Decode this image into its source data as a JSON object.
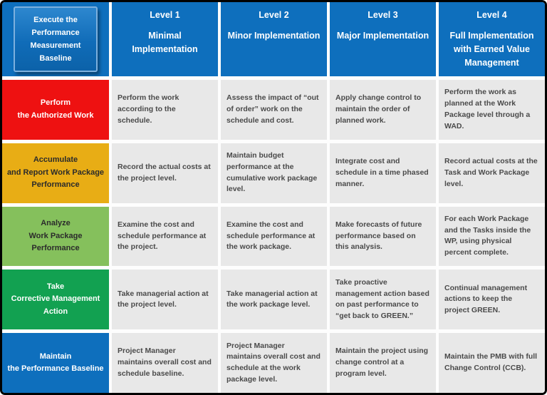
{
  "corner": {
    "text": "Execute the\nPerformance\nMeasurement\nBaseline"
  },
  "columns": [
    {
      "level": "Level 1",
      "name": "Minimal\nImplementation"
    },
    {
      "level": "Level 2",
      "name": "Minor Implementation"
    },
    {
      "level": "Level 3",
      "name": "Major Implementation"
    },
    {
      "level": "Level 4",
      "name": "Full Implementation\nwith Earned Value\nManagement"
    }
  ],
  "rows": [
    {
      "header": "Perform\nthe Authorized Work",
      "color": "#EE1111",
      "text_color": "#FFFFFF",
      "cells": [
        "Perform the work according to the schedule.",
        "Assess the impact of “out of order” work on the schedule and cost.",
        "Apply change control to maintain the order of planned work.",
        "Perform the work as planned at the Work Package level through a WAD."
      ]
    },
    {
      "header": "Accumulate\nand Report Work Package\nPerformance",
      "color": "#E8AD15",
      "text_color": "#2B2B2B",
      "cells": [
        "Record the actual costs at the project level.",
        "Maintain budget performance at the cumulative work package level.",
        "Integrate cost and schedule in a time phased manner.",
        "Record actual costs at the Task and Work Package level."
      ]
    },
    {
      "header": "Analyze\nWork Package\nPerformance",
      "color": "#85C05C",
      "text_color": "#2B2B2B",
      "cells": [
        "Examine the cost and schedule performance at the project.",
        "Examine the cost and schedule performance at the work package.",
        "Make forecasts of future performance based on this analysis.",
        "For each Work Package and the Tasks inside the WP, using physical percent complete."
      ]
    },
    {
      "header": "Take\nCorrective Management\nAction",
      "color": "#12A151",
      "text_color": "#FFFFFF",
      "cells": [
        "Take managerial action at the project level.",
        "Take managerial action at the work package level.",
        "Take proactive management action based on past performance to “get back to GREEN.”",
        "Continual management actions to keep the project GREEN."
      ]
    },
    {
      "header": "Maintain\nthe Performance Baseline",
      "color": "#0E6FBD",
      "text_color": "#FFFFFF",
      "cells": [
        "Project Manager maintains overall cost and schedule baseline.",
        "Project Manager maintains overall cost and schedule at the work package level.",
        "Maintain the project using change control at a program level.",
        "Maintain the PMB with full Change Control (CCB)."
      ]
    }
  ],
  "colors": {
    "header_blue": "#0E6FBD",
    "cell_gray": "#E8E8E8",
    "body_text": "#4A4A4A",
    "frame_border": "#000000"
  }
}
